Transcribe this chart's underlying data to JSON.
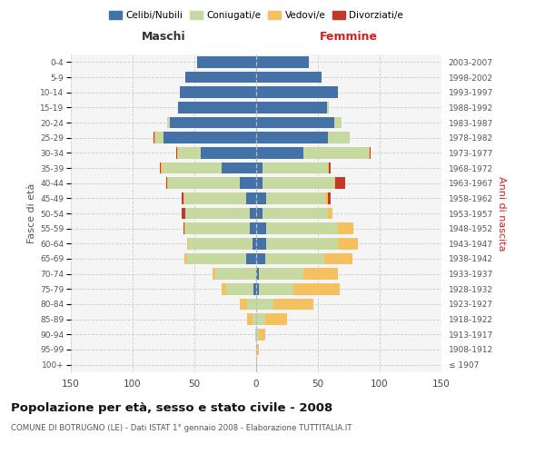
{
  "age_groups": [
    "100+",
    "95-99",
    "90-94",
    "85-89",
    "80-84",
    "75-79",
    "70-74",
    "65-69",
    "60-64",
    "55-59",
    "50-54",
    "45-49",
    "40-44",
    "35-39",
    "30-34",
    "25-29",
    "20-24",
    "15-19",
    "10-14",
    "5-9",
    "0-4"
  ],
  "birth_years": [
    "≤ 1907",
    "1908-1912",
    "1913-1917",
    "1918-1922",
    "1923-1927",
    "1928-1932",
    "1933-1937",
    "1938-1942",
    "1943-1947",
    "1948-1952",
    "1953-1957",
    "1958-1962",
    "1963-1967",
    "1968-1972",
    "1973-1977",
    "1978-1982",
    "1983-1987",
    "1988-1992",
    "1993-1997",
    "1998-2002",
    "2003-2007"
  ],
  "maschi_celibe": [
    0,
    0,
    0,
    0,
    0,
    2,
    0,
    8,
    3,
    5,
    5,
    8,
    13,
    28,
    45,
    75,
    70,
    63,
    62,
    57,
    48
  ],
  "maschi_coniugato": [
    0,
    0,
    1,
    3,
    7,
    22,
    33,
    48,
    52,
    52,
    52,
    50,
    58,
    48,
    18,
    6,
    2,
    0,
    0,
    0,
    0
  ],
  "maschi_vedovo": [
    0,
    0,
    0,
    4,
    6,
    4,
    2,
    2,
    1,
    1,
    0,
    1,
    1,
    1,
    1,
    1,
    0,
    0,
    0,
    0,
    0
  ],
  "maschi_divorziato": [
    0,
    0,
    0,
    0,
    0,
    0,
    0,
    0,
    0,
    1,
    3,
    1,
    1,
    1,
    1,
    1,
    0,
    0,
    0,
    0,
    0
  ],
  "femmine_nubile": [
    0,
    0,
    0,
    0,
    0,
    2,
    2,
    7,
    8,
    8,
    5,
    8,
    5,
    5,
    38,
    58,
    63,
    57,
    66,
    53,
    43
  ],
  "femmine_coniugata": [
    0,
    1,
    2,
    7,
    14,
    28,
    36,
    48,
    58,
    58,
    53,
    48,
    58,
    53,
    53,
    18,
    6,
    2,
    0,
    0,
    0
  ],
  "femmine_vedova": [
    1,
    1,
    5,
    18,
    32,
    38,
    28,
    23,
    16,
    13,
    4,
    2,
    1,
    1,
    1,
    0,
    0,
    0,
    0,
    0,
    0
  ],
  "femmine_divorziata": [
    0,
    0,
    0,
    0,
    0,
    0,
    0,
    0,
    0,
    0,
    0,
    2,
    8,
    1,
    1,
    0,
    0,
    0,
    0,
    0,
    0
  ],
  "color_celibe": "#4472a8",
  "color_coniugato": "#c5d9a0",
  "color_vedovo": "#f5c060",
  "color_divorziato": "#c0392b",
  "xlim": 150,
  "title": "Popolazione per età, sesso e stato civile - 2008",
  "subtitle": "COMUNE DI BOTRUGNO (LE) - Dati ISTAT 1° gennaio 2008 - Elaborazione TUTTITALIA.IT",
  "ylabel_left": "Fasce di età",
  "ylabel_right": "Anni di nascita",
  "label_maschi": "Maschi",
  "label_femmine": "Femmine",
  "legend_labels": [
    "Celibi/Nubili",
    "Coniugati/e",
    "Vedovi/e",
    "Divorziati/e"
  ]
}
